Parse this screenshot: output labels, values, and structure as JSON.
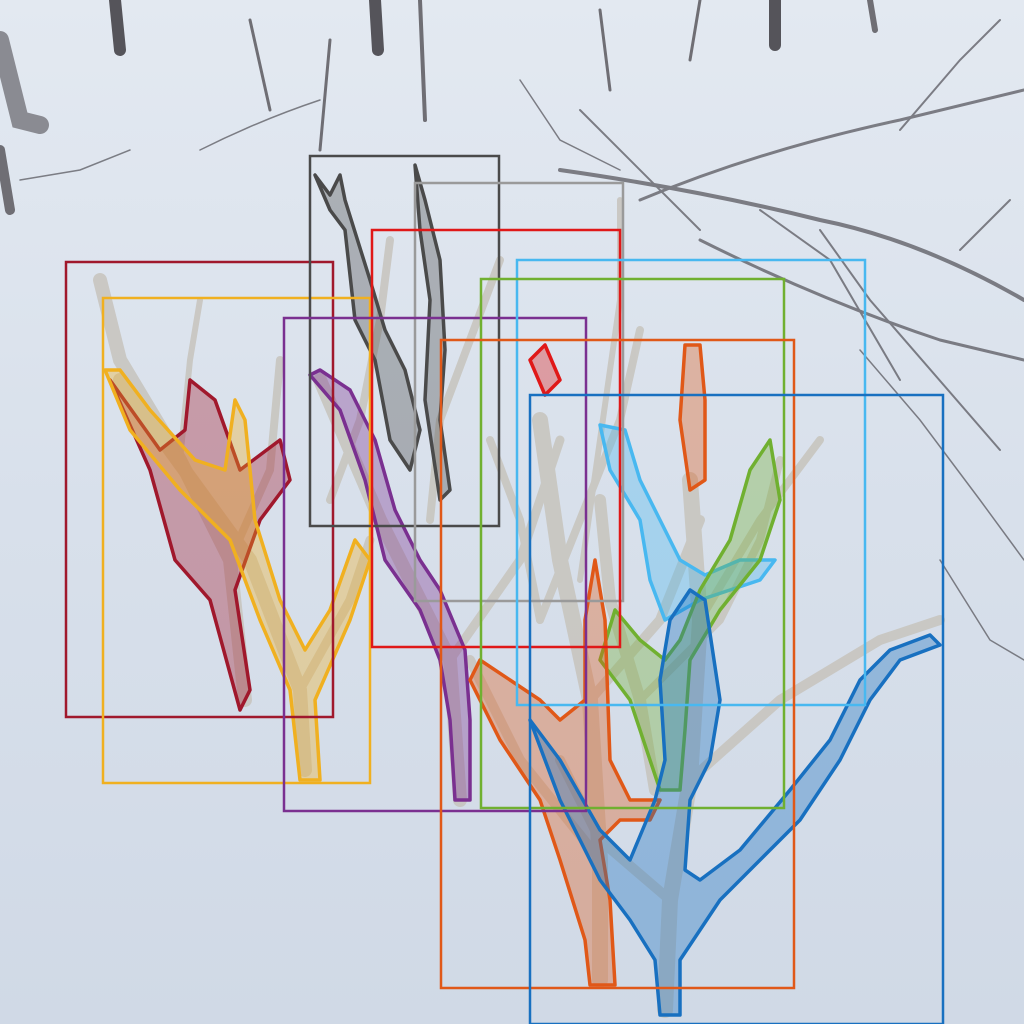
{
  "scene": {
    "description_hidden": "",
    "background_top": "#dfe6ee",
    "background_bottom": "#d2dbe8",
    "branch_color": "#5b5a5e",
    "sapling_color": "#c9c6bf"
  },
  "annotations": [
    {
      "label": "instance-1",
      "color": "#a0182c"
    },
    {
      "label": "instance-2",
      "color": "#f0b020"
    },
    {
      "label": "instance-3",
      "color": "#4a4a4a"
    },
    {
      "label": "instance-4",
      "color": "#9a9a9a"
    },
    {
      "label": "instance-5",
      "color": "#e01818"
    },
    {
      "label": "instance-6",
      "color": "#7a3090"
    },
    {
      "label": "instance-7",
      "color": "#48b8f0"
    },
    {
      "label": "instance-8",
      "color": "#70b030"
    },
    {
      "label": "instance-9",
      "color": "#e05818"
    },
    {
      "label": "instance-10",
      "color": "#1870c0"
    }
  ]
}
